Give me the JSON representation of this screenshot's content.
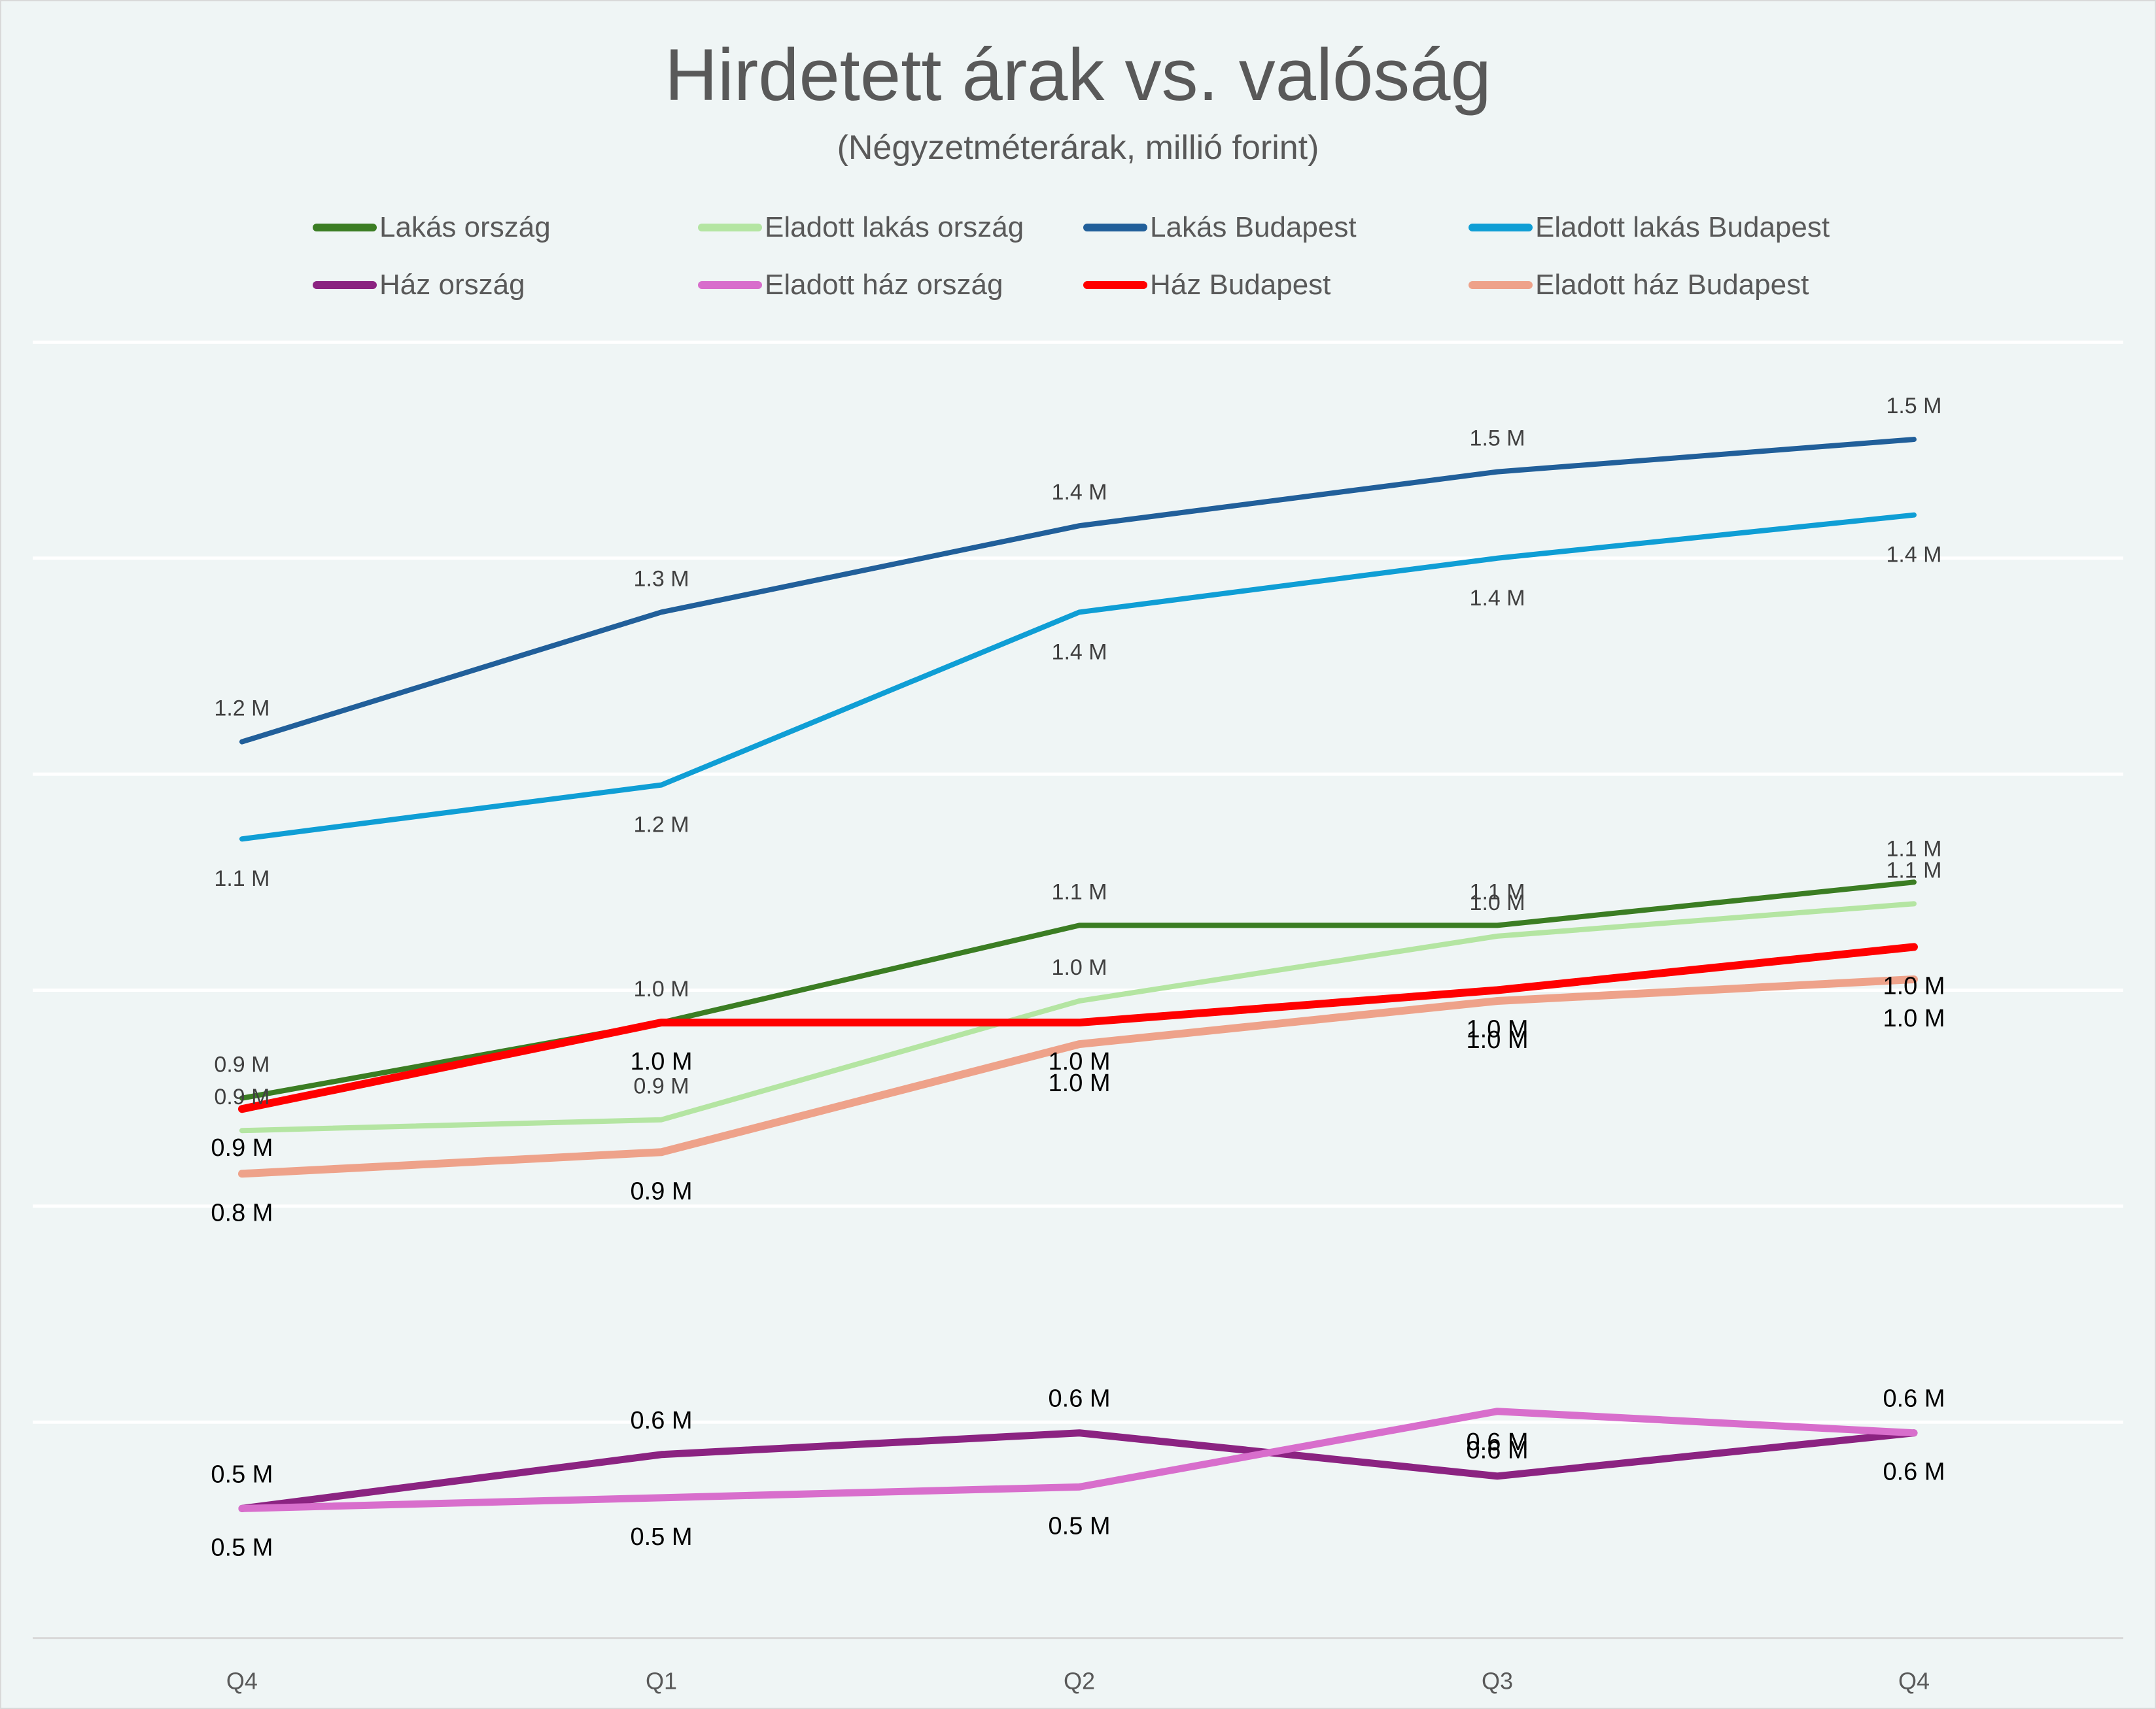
{
  "chart_data": {
    "type": "line",
    "title": "Hirdetett árak vs. valóság",
    "subtitle": "(Négyzetméterárak, millió forint)",
    "xlabel": "",
    "ylabel": "",
    "categories": [
      "Q4",
      "Q1",
      "Q2",
      "Q3",
      "Q4"
    ],
    "ylim": [
      0.4,
      1.6
    ],
    "y_gridlines": [
      0.6,
      0.8,
      1.0,
      1.2,
      1.4,
      1.6
    ],
    "y_tick_labels_visible": false,
    "grid": true,
    "legend_position": "top",
    "series": [
      {
        "name": "Lakás ország",
        "color": "#3b7d23",
        "values": [
          0.9,
          0.97,
          1.06,
          1.06,
          1.1
        ],
        "labels": [
          "0.9 M",
          "1.0 M",
          "1.1 M",
          "1.1 M",
          "1.1 M"
        ],
        "label_position": "above",
        "label_color": "#404040"
      },
      {
        "name": "Eladott lakás ország",
        "color": "#b4e5a2",
        "values": [
          0.87,
          0.88,
          0.99,
          1.05,
          1.08
        ],
        "labels": [
          "0.9 M",
          "0.9 M",
          "1.0 M",
          "1.0 M",
          "1.1 M"
        ],
        "label_position": "above",
        "label_color": "#404040"
      },
      {
        "name": "Lakás Budapest",
        "color": "#215f9a",
        "values": [
          1.23,
          1.35,
          1.43,
          1.48,
          1.51
        ],
        "labels": [
          "1.2 M",
          "1.3 M",
          "1.4 M",
          "1.5 M",
          "1.5 M"
        ],
        "label_position": "above",
        "label_color": "#404040"
      },
      {
        "name": "Eladott lakás Budapest",
        "color": "#0f9ed5",
        "values": [
          1.14,
          1.19,
          1.35,
          1.4,
          1.44
        ],
        "labels": [
          "1.1 M",
          "1.2 M",
          "1.4 M",
          "1.4 M",
          "1.4 M"
        ],
        "label_position": "below",
        "label_color": "#404040"
      },
      {
        "name": "Ház ország",
        "color": "#8b2381",
        "values": [
          0.52,
          0.57,
          0.59,
          0.55,
          0.59
        ],
        "labels": [
          "0.5 M",
          "0.6 M",
          "0.6 M",
          "0.6 M",
          "0.6 M"
        ],
        "label_position": "above",
        "label_color": "#000000"
      },
      {
        "name": "Eladott ház ország",
        "color": "#d86ecc",
        "values": [
          0.52,
          0.53,
          0.54,
          0.61,
          0.59
        ],
        "labels": [
          "0.5 M",
          "0.5 M",
          "0.5 M",
          "0.6 M",
          "0.6 M"
        ],
        "label_position": "below",
        "label_color": "#000000"
      },
      {
        "name": "Ház Budapest",
        "color": "#ff0000",
        "values": [
          0.89,
          0.97,
          0.97,
          1.0,
          1.04
        ],
        "labels": [
          "0.9 M",
          "1.0 M",
          "1.0 M",
          "1.0 M",
          "1.0 M"
        ],
        "label_position": "below",
        "label_color": "#000000"
      },
      {
        "name": "Eladott ház Budapest",
        "color": "#eea28a",
        "values": [
          0.83,
          0.85,
          0.95,
          0.99,
          1.01
        ],
        "labels": [
          "0.8 M",
          "0.9 M",
          "1.0 M",
          "1.0 M",
          "1.0 M"
        ],
        "label_position": "below",
        "label_color": "#000000"
      }
    ]
  }
}
